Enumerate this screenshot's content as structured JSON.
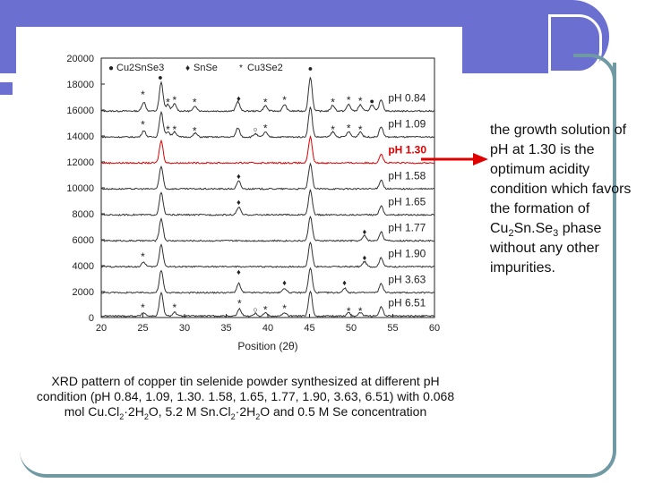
{
  "theme": {
    "accent": "#6a6fd0",
    "frame": "#6f9aa4",
    "highlight": "#e00000",
    "series_color": "#333333"
  },
  "annotation": {
    "line1": "the growth solution of pH at 1.30 is the optimum acidity condition which favors the formation of Cu",
    "sub1": "2",
    "mid1": "Sn.Se",
    "sub2": "3",
    "line2": " phase without any other impurities."
  },
  "caption": {
    "part1": "XRD pattern of copper tin selenide powder synthesized at different pH condition (pH 0.84, 1.09, 1.30. 1.58, 1.65, 1.77, 1.90, 3.63, 6.51) with 0.068 mol Cu.Cl",
    "sub1": "2",
    "part2": "·2H",
    "sub2": "2",
    "part3": "O, 5.2 M Sn.Cl",
    "sub3": "2",
    "part4": "·2H",
    "sub4": "2",
    "part5": "O and 0.5 M Se concentration"
  },
  "chart_data": {
    "type": "line",
    "xlabel": "Position (2θ)",
    "ylabel": "",
    "xlim": [
      20,
      60
    ],
    "ylim": [
      0,
      20000
    ],
    "x_ticks": [
      20,
      25,
      30,
      35,
      40,
      45,
      50,
      55,
      60
    ],
    "y_ticks": [
      0,
      2000,
      4000,
      6000,
      8000,
      10000,
      12000,
      14000,
      16000,
      18000,
      20000
    ],
    "legend": {
      "position": "top",
      "entries": [
        {
          "marker": "●",
          "label": "Cu2SnSe3"
        },
        {
          "marker": "♦",
          "label": "SnSe"
        },
        {
          "marker": "*",
          "label": "Cu3Se2"
        }
      ]
    },
    "peak_positions": {
      "Cu2SnSe3": [
        27.2,
        45.2,
        53.5
      ],
      "SnSe": [
        36.5,
        42.0,
        49.2,
        51.6
      ],
      "Cu3Se2": [
        25.0,
        28.2,
        29.0,
        31.2,
        36.6,
        39.7,
        42.0,
        47.8,
        49.7,
        51.1
      ]
    },
    "series": [
      {
        "name": "pH 0.84",
        "baseline": 15800,
        "highlight": false,
        "peaks": [
          {
            "x": 25.1,
            "h": 700
          },
          {
            "x": 27.2,
            "h": 2200
          },
          {
            "x": 28.0,
            "h": 500
          },
          {
            "x": 28.8,
            "h": 550
          },
          {
            "x": 31.3,
            "h": 380
          },
          {
            "x": 36.4,
            "h": 750
          },
          {
            "x": 39.7,
            "h": 420
          },
          {
            "x": 42.0,
            "h": 500
          },
          {
            "x": 45.1,
            "h": 2600
          },
          {
            "x": 47.8,
            "h": 450
          },
          {
            "x": 49.7,
            "h": 520
          },
          {
            "x": 51.1,
            "h": 480
          },
          {
            "x": 52.5,
            "h": 480
          },
          {
            "x": 53.6,
            "h": 900
          }
        ],
        "markers": [
          {
            "x": 25.0,
            "y": 16900,
            "s": "*"
          },
          {
            "x": 27.1,
            "y": 18300,
            "s": "●"
          },
          {
            "x": 28.0,
            "y": 16300,
            "s": "*"
          },
          {
            "x": 28.8,
            "y": 16500,
            "s": "*"
          },
          {
            "x": 31.2,
            "y": 16300,
            "s": "*"
          },
          {
            "x": 36.5,
            "y": 16700,
            "s": "♦"
          },
          {
            "x": 39.7,
            "y": 16300,
            "s": "*"
          },
          {
            "x": 42.0,
            "y": 16500,
            "s": "*"
          },
          {
            "x": 45.1,
            "y": 19000,
            "s": "●"
          },
          {
            "x": 47.8,
            "y": 16300,
            "s": "*"
          },
          {
            "x": 49.7,
            "y": 16500,
            "s": "*"
          },
          {
            "x": 51.1,
            "y": 16400,
            "s": "*"
          },
          {
            "x": 52.5,
            "y": 16500,
            "s": "●"
          }
        ]
      },
      {
        "name": "pH 1.09",
        "baseline": 13800,
        "highlight": false,
        "peaks": [
          {
            "x": 25.1,
            "h": 500
          },
          {
            "x": 27.2,
            "h": 1900
          },
          {
            "x": 28.0,
            "h": 420
          },
          {
            "x": 28.8,
            "h": 420
          },
          {
            "x": 31.3,
            "h": 300
          },
          {
            "x": 36.4,
            "h": 700
          },
          {
            "x": 38.5,
            "h": 250
          },
          {
            "x": 39.7,
            "h": 380
          },
          {
            "x": 45.1,
            "h": 2300
          },
          {
            "x": 47.8,
            "h": 400
          },
          {
            "x": 49.7,
            "h": 400
          },
          {
            "x": 51.1,
            "h": 400
          },
          {
            "x": 53.6,
            "h": 800
          }
        ],
        "markers": [
          {
            "x": 25.0,
            "y": 14600,
            "s": "*"
          },
          {
            "x": 28.0,
            "y": 14200,
            "s": "*"
          },
          {
            "x": 28.8,
            "y": 14200,
            "s": "*"
          },
          {
            "x": 31.2,
            "y": 14100,
            "s": "*"
          },
          {
            "x": 38.5,
            "y": 14300,
            "s": "○"
          },
          {
            "x": 39.7,
            "y": 14300,
            "s": "*"
          },
          {
            "x": 47.8,
            "y": 14200,
            "s": "*"
          },
          {
            "x": 49.7,
            "y": 14300,
            "s": "*"
          },
          {
            "x": 51.1,
            "y": 14200,
            "s": "*"
          }
        ]
      },
      {
        "name": "pH 1.30",
        "baseline": 11800,
        "highlight": true,
        "peaks": [
          {
            "x": 27.2,
            "h": 1700
          },
          {
            "x": 45.1,
            "h": 2000
          },
          {
            "x": 53.6,
            "h": 700
          }
        ],
        "markers": []
      },
      {
        "name": "pH 1.58",
        "baseline": 9800,
        "highlight": false,
        "peaks": [
          {
            "x": 27.2,
            "h": 1700
          },
          {
            "x": 36.5,
            "h": 600
          },
          {
            "x": 45.1,
            "h": 1900
          },
          {
            "x": 53.6,
            "h": 700
          }
        ],
        "markers": [
          {
            "x": 36.5,
            "y": 10700,
            "s": "♦"
          }
        ]
      },
      {
        "name": "pH 1.65",
        "baseline": 7800,
        "highlight": false,
        "peaks": [
          {
            "x": 27.2,
            "h": 1700
          },
          {
            "x": 36.5,
            "h": 600
          },
          {
            "x": 45.1,
            "h": 1900
          },
          {
            "x": 53.6,
            "h": 700
          }
        ],
        "markers": [
          {
            "x": 36.5,
            "y": 8700,
            "s": "♦"
          }
        ]
      },
      {
        "name": "pH 1.77",
        "baseline": 5800,
        "highlight": false,
        "peaks": [
          {
            "x": 27.2,
            "h": 1700
          },
          {
            "x": 45.1,
            "h": 1900
          },
          {
            "x": 51.6,
            "h": 400
          },
          {
            "x": 53.6,
            "h": 700
          }
        ],
        "markers": [
          {
            "x": 51.6,
            "y": 6400,
            "s": "♦"
          }
        ]
      },
      {
        "name": "pH 1.90",
        "baseline": 3800,
        "highlight": false,
        "peaks": [
          {
            "x": 25.1,
            "h": 350
          },
          {
            "x": 27.2,
            "h": 1700
          },
          {
            "x": 45.1,
            "h": 1900
          },
          {
            "x": 51.6,
            "h": 400
          },
          {
            "x": 53.6,
            "h": 700
          }
        ],
        "markers": [
          {
            "x": 25.0,
            "y": 4400,
            "s": "*"
          },
          {
            "x": 51.6,
            "y": 4400,
            "s": "♦"
          }
        ]
      },
      {
        "name": "pH 3.63",
        "baseline": 1800,
        "highlight": false,
        "peaks": [
          {
            "x": 27.2,
            "h": 1700
          },
          {
            "x": 36.5,
            "h": 700
          },
          {
            "x": 42.0,
            "h": 350
          },
          {
            "x": 45.1,
            "h": 1900
          },
          {
            "x": 49.2,
            "h": 350
          },
          {
            "x": 53.6,
            "h": 700
          }
        ],
        "markers": [
          {
            "x": 36.5,
            "y": 3300,
            "s": "♦"
          },
          {
            "x": 42.0,
            "y": 2500,
            "s": "♦"
          },
          {
            "x": 49.2,
            "y": 2500,
            "s": "♦"
          }
        ]
      },
      {
        "name": "pH 6.51",
        "baseline": 0,
        "highlight": false,
        "peaks": [
          {
            "x": 25.1,
            "h": 250
          },
          {
            "x": 27.2,
            "h": 1800
          },
          {
            "x": 28.8,
            "h": 300
          },
          {
            "x": 36.6,
            "h": 550
          },
          {
            "x": 38.5,
            "h": 200
          },
          {
            "x": 39.7,
            "h": 250
          },
          {
            "x": 42.0,
            "h": 250
          },
          {
            "x": 45.1,
            "h": 1900
          },
          {
            "x": 49.7,
            "h": 250
          },
          {
            "x": 51.1,
            "h": 250
          },
          {
            "x": 53.6,
            "h": 700
          }
        ],
        "markers": [
          {
            "x": 25.0,
            "y": 500,
            "s": "*"
          },
          {
            "x": 28.8,
            "y": 500,
            "s": "*"
          },
          {
            "x": 36.6,
            "y": 800,
            "s": "*"
          },
          {
            "x": 38.5,
            "y": 400,
            "s": "○"
          },
          {
            "x": 39.7,
            "y": 300,
            "s": "*"
          },
          {
            "x": 42.0,
            "y": 400,
            "s": "*"
          },
          {
            "x": 49.7,
            "y": 200,
            "s": "*"
          },
          {
            "x": 51.1,
            "y": 200,
            "s": "*"
          }
        ]
      }
    ]
  }
}
